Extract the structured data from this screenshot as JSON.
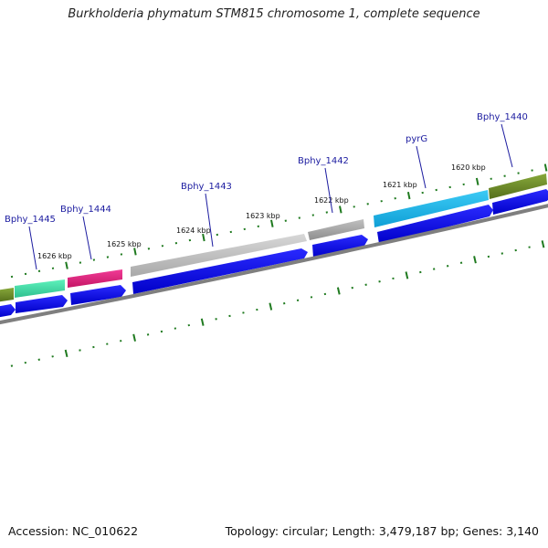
{
  "title": "Burkholderia phymatum STM815 chromosome 1, complete sequence",
  "footer": {
    "accession": "Accession: NC_010622",
    "summary": "Topology: circular; Length: 3,479,187 bp; Genes: 3,140"
  },
  "kbp_labels": [
    "1626 kbp",
    "1625 kbp",
    "1624 kbp",
    "1623 kbp",
    "1622 kbp",
    "1621 kbp",
    "1620 kbp"
  ],
  "gene_labels": [
    "Bphy_1445",
    "Bphy_1444",
    "Bphy_1443",
    "Bphy_1442",
    "pyrG",
    "Bphy_1440"
  ],
  "colors": {
    "cds": "#0000ee",
    "olive": "#6b8e23",
    "teal_green": "#3cd6a0",
    "magenta": "#e0207a",
    "gray_light": "#c4c4c4",
    "gray_dark": "#a8a8a8",
    "cyan": "#1ab4ea",
    "backbone": "#808080",
    "tick": "#1f7a1f",
    "label_blue": "#1c1ca0"
  }
}
